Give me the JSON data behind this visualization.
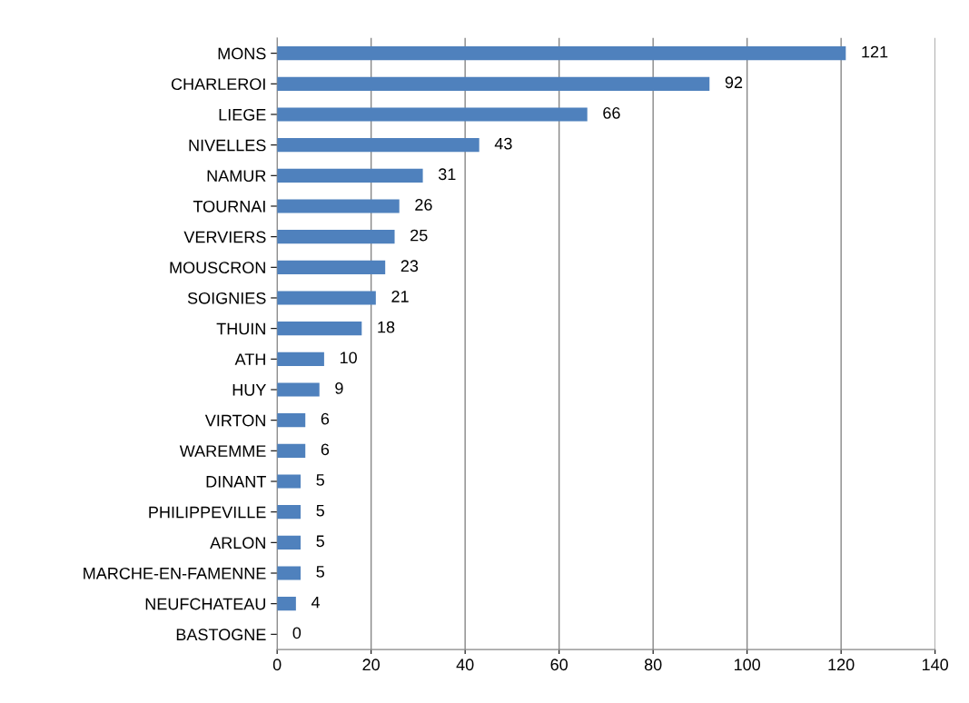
{
  "chart_data": {
    "type": "bar",
    "orientation": "horizontal",
    "categories": [
      "MONS",
      "CHARLEROI",
      "LIEGE",
      "NIVELLES",
      "NAMUR",
      "TOURNAI",
      "VERVIERS",
      "MOUSCRON",
      "SOIGNIES",
      "THUIN",
      "ATH",
      "HUY",
      "VIRTON",
      "WAREMME",
      "DINANT",
      "PHILIPPEVILLE",
      "ARLON",
      "MARCHE-EN-FAMENNE",
      "NEUFCHATEAU",
      "BASTOGNE"
    ],
    "values": [
      121,
      92,
      66,
      43,
      31,
      26,
      25,
      23,
      21,
      18,
      10,
      9,
      6,
      6,
      5,
      5,
      5,
      5,
      4,
      0
    ],
    "color": "#4f81bd",
    "xlim": [
      0,
      140
    ],
    "xticks": [
      0,
      20,
      40,
      60,
      80,
      100,
      120,
      140
    ],
    "grid": "x",
    "data_labels": true,
    "legend": false
  }
}
